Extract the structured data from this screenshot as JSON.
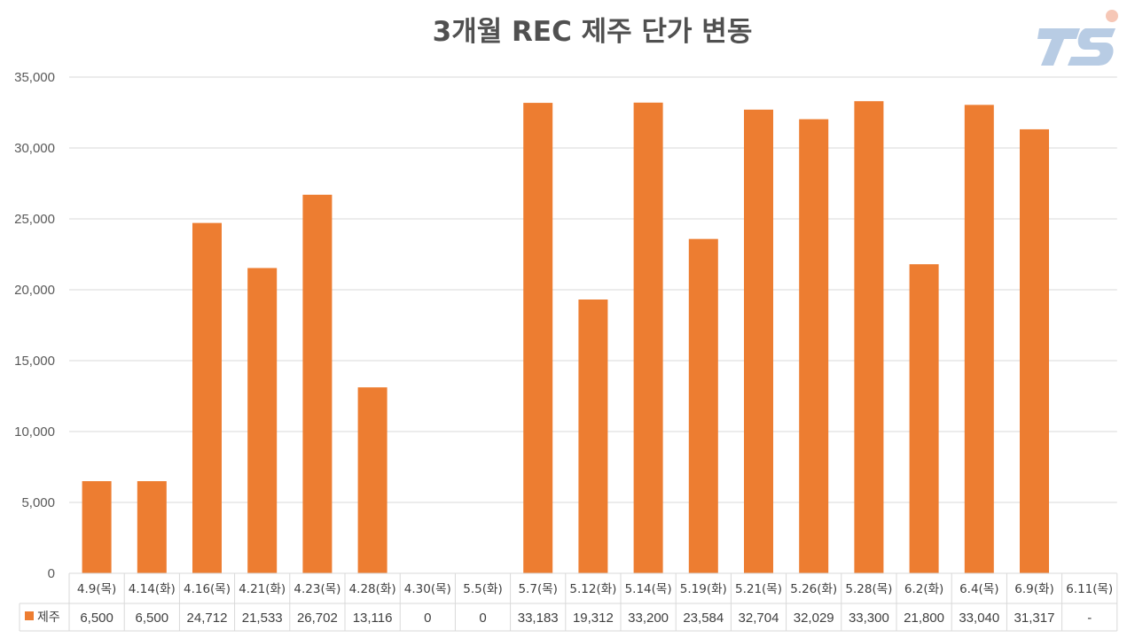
{
  "chart_data": {
    "type": "bar",
    "title": "3개월 REC 제주 단가 변동",
    "categories": [
      "4.9(목)",
      "4.14(화)",
      "4.16(목)",
      "4.21(화)",
      "4.23(목)",
      "4.28(화)",
      "4.30(목)",
      "5.5(화)",
      "5.7(목)",
      "5.12(화)",
      "5.14(목)",
      "5.19(화)",
      "5.21(목)",
      "5.26(화)",
      "5.28(목)",
      "6.2(화)",
      "6.4(목)",
      "6.9(화)",
      "6.11(목)"
    ],
    "series": [
      {
        "name": "제주",
        "color": "#ED7D31",
        "values": [
          6500,
          6500,
          24712,
          21533,
          26702,
          13116,
          0,
          0,
          33183,
          19312,
          33200,
          23584,
          32704,
          32029,
          33300,
          21800,
          33040,
          31317,
          null
        ],
        "labels": [
          "6,500",
          "6,500",
          "24,712",
          "21,533",
          "26,702",
          "13,116",
          "0",
          "0",
          "33,183",
          "19,312",
          "33,200",
          "23,584",
          "32,704",
          "32,029",
          "33,300",
          "21,800",
          "33,040",
          "31,317",
          "-"
        ]
      }
    ],
    "ylim": [
      0,
      35000
    ],
    "yticks": [
      "0",
      "5,000",
      "10,000",
      "15,000",
      "20,000",
      "25,000",
      "30,000",
      "35,000"
    ],
    "grid": true,
    "legend": "data-table-left",
    "data_table": true
  },
  "colors": {
    "bar": "#ED7D31",
    "grid": "#D9D9D9",
    "title": "#505050",
    "logo": "#B8CCE4"
  },
  "logo": {
    "icon": "ts-logo-icon"
  }
}
